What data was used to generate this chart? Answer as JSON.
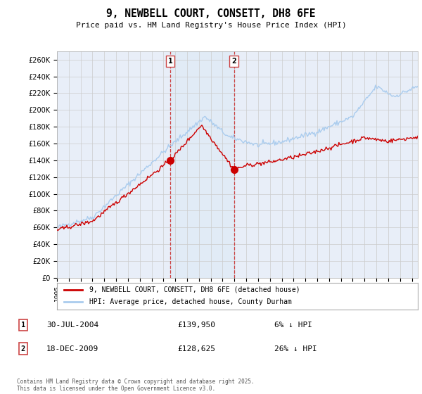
{
  "title": "9, NEWBELL COURT, CONSETT, DH8 6FE",
  "subtitle": "Price paid vs. HM Land Registry's House Price Index (HPI)",
  "ylabel_ticks": [
    "£0",
    "£20K",
    "£40K",
    "£60K",
    "£80K",
    "£100K",
    "£120K",
    "£140K",
    "£160K",
    "£180K",
    "£200K",
    "£220K",
    "£240K",
    "£260K"
  ],
  "ylim": [
    0,
    270000
  ],
  "yticks": [
    0,
    20000,
    40000,
    60000,
    80000,
    100000,
    120000,
    140000,
    160000,
    180000,
    200000,
    220000,
    240000,
    260000
  ],
  "legend_line1": "9, NEWBELL COURT, CONSETT, DH8 6FE (detached house)",
  "legend_line2": "HPI: Average price, detached house, County Durham",
  "transaction1_date": "30-JUL-2004",
  "transaction1_price": "£139,950",
  "transaction1_hpi": "6% ↓ HPI",
  "transaction2_date": "18-DEC-2009",
  "transaction2_price": "£128,625",
  "transaction2_hpi": "26% ↓ HPI",
  "footnote": "Contains HM Land Registry data © Crown copyright and database right 2025.\nThis data is licensed under the Open Government Licence v3.0.",
  "vline1_x": 2004.58,
  "vline2_x": 2009.96,
  "point1_x": 2004.58,
  "point1_y_red": 139950,
  "point2_x": 2009.96,
  "point2_y_red": 128625,
  "red_color": "#cc0000",
  "blue_color": "#aaccee",
  "background_color": "#e8eef8",
  "grid_color": "#cccccc",
  "vline_color": "#cc4444",
  "xlim_left": 1995.0,
  "xlim_right": 2025.5,
  "xtick_start": 1995,
  "xtick_end": 2026
}
